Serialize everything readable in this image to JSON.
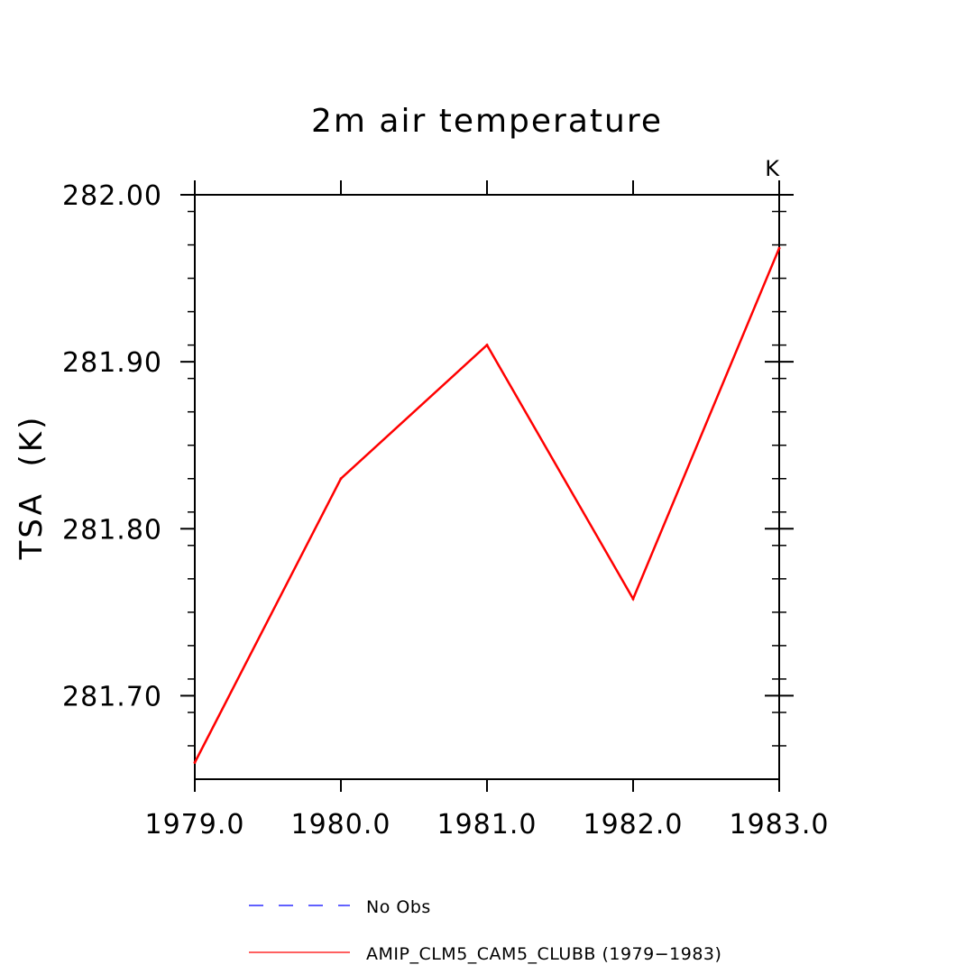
{
  "chart_data": {
    "type": "line",
    "title": "2m air temperature",
    "ylabel": "TSA  (K)",
    "units_label": "K",
    "xlim": [
      1979.0,
      1983.0
    ],
    "ylim": [
      281.65,
      282.0
    ],
    "x_ticks": [
      1979.0,
      1980.0,
      1981.0,
      1982.0,
      1983.0
    ],
    "x_tick_labels": [
      "1979.0",
      "1980.0",
      "1981.0",
      "1982.0",
      "1983.0"
    ],
    "y_ticks": [
      281.7,
      281.8,
      281.9,
      282.0
    ],
    "y_tick_labels": [
      "281.70",
      "281.80",
      "281.90",
      "282.00"
    ],
    "y_minor_step": 0.02,
    "grid": false,
    "legend_position": "bottom",
    "series": [
      {
        "name": "AMIP_CLM5_CAM5_CLUBB (1979-1983)",
        "color": "#ff0000",
        "dash": "solid",
        "x": [
          1979.0,
          1980.0,
          1981.0,
          1982.0,
          1983.0
        ],
        "y": [
          281.66,
          281.83,
          281.91,
          281.758,
          281.968
        ]
      }
    ],
    "legend": [
      {
        "label": "No Obs",
        "color": "#0000ff",
        "dash": "dashed"
      },
      {
        "label": "AMIP_CLM5_CAM5_CLUBB (1979−1983)",
        "color": "#ff0000",
        "dash": "solid"
      }
    ]
  }
}
